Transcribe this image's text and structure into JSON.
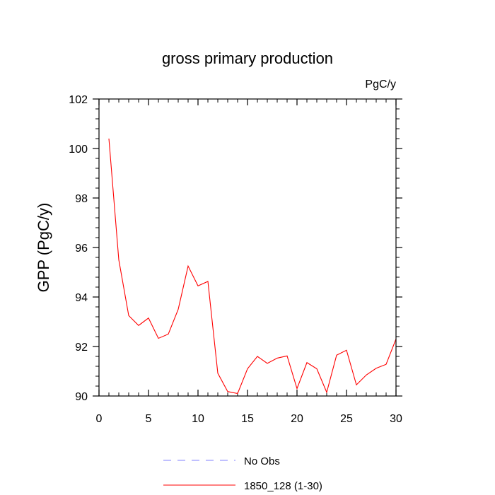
{
  "chart_data": {
    "type": "line",
    "title": "gross primary production",
    "units_label": "PgC/y",
    "ylabel": "GPP  (PgC/y)",
    "xlabel": "",
    "xlim": [
      0,
      30
    ],
    "ylim": [
      90,
      102
    ],
    "xticks": [
      0,
      5,
      10,
      15,
      20,
      25,
      30
    ],
    "yticks": [
      90,
      92,
      94,
      96,
      98,
      100,
      102
    ],
    "xtick_labels": [
      "0",
      "5",
      "10",
      "15",
      "20",
      "25",
      "30"
    ],
    "ytick_labels": [
      "90",
      "92",
      "94",
      "96",
      "98",
      "100",
      "102"
    ],
    "grid": false,
    "legend_position": "bottom",
    "series": [
      {
        "name": "1850_128 (1-30)",
        "color": "#ff0000",
        "dash": "solid",
        "x": [
          1,
          2,
          3,
          4,
          5,
          6,
          7,
          8,
          9,
          10,
          11,
          12,
          13,
          14,
          15,
          16,
          17,
          18,
          19,
          20,
          21,
          22,
          23,
          24,
          25,
          26,
          27,
          28,
          29,
          30
        ],
        "values": [
          100.4,
          95.5,
          93.25,
          92.85,
          93.15,
          92.33,
          92.5,
          93.5,
          95.25,
          94.45,
          94.63,
          90.92,
          90.18,
          90.1,
          91.1,
          91.6,
          91.32,
          91.53,
          91.62,
          90.3,
          91.35,
          91.1,
          90.15,
          91.65,
          91.85,
          90.45,
          90.85,
          91.12,
          91.28,
          92.3
        ]
      }
    ],
    "legend": [
      {
        "label": "No Obs",
        "color": "#8080ff",
        "dash": "dashed"
      },
      {
        "label": "1850_128 (1-30)",
        "color": "#ff0000",
        "dash": "solid"
      }
    ]
  }
}
